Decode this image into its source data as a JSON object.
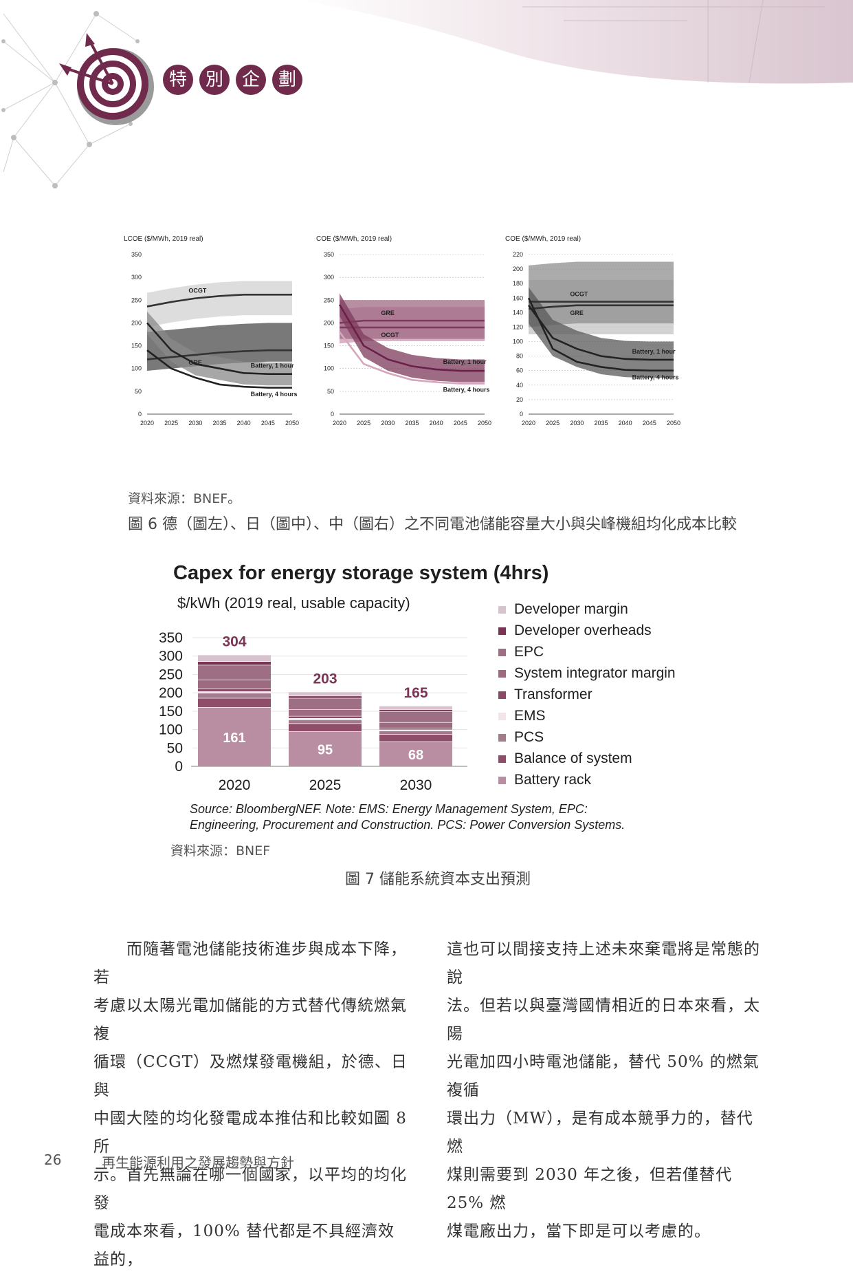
{
  "header": {
    "section_chars": [
      "特",
      "別",
      "企",
      "劃"
    ]
  },
  "figure6": {
    "source": "資料來源：BNEF。",
    "caption": "圖 6  德（圖左）、日（圖中）、中（圖右）之不同電池儲能容量大小與尖峰機組均化成本比較"
  },
  "chart_data": [
    {
      "type": "line",
      "title": "",
      "ylabel": "LCOE ($/MWh, 2019 real)",
      "ylim": [
        0,
        350
      ],
      "y_ticks": [
        "0",
        "50",
        "100",
        "150",
        "200",
        "250",
        "300",
        "350"
      ],
      "x_ticks": [
        "2020",
        "2025",
        "2030",
        "2035",
        "2040",
        "2045",
        "2050"
      ],
      "x": [
        2020,
        2025,
        2030,
        2035,
        2040,
        2045,
        2050
      ],
      "series": [
        {
          "name": "OCGT",
          "values": [
            236,
            246,
            254,
            259,
            262,
            262,
            262
          ]
        },
        {
          "name": "GRE",
          "values": [
            120,
            125,
            130,
            135,
            138,
            140,
            140
          ]
        },
        {
          "name": "Battery, 1 hour",
          "values": [
            200,
            140,
            110,
            100,
            90,
            88,
            88
          ]
        },
        {
          "name": "Battery, 4 hours",
          "values": [
            140,
            100,
            80,
            65,
            60,
            58,
            58
          ]
        }
      ]
    },
    {
      "type": "line",
      "title": "",
      "ylabel": "COE ($/MWh, 2019 real)",
      "ylim": [
        0,
        350
      ],
      "y_ticks": [
        "0",
        "50",
        "100",
        "150",
        "200",
        "250",
        "300",
        "350"
      ],
      "x_ticks": [
        "2020",
        "2025",
        "2030",
        "2035",
        "2040",
        "2045",
        "2050"
      ],
      "x": [
        2020,
        2025,
        2030,
        2035,
        2040,
        2045,
        2050
      ],
      "series": [
        {
          "name": "GRE",
          "values": [
            200,
            205,
            205,
            205,
            205,
            205,
            205
          ]
        },
        {
          "name": "OCGT",
          "values": [
            190,
            190,
            190,
            190,
            190,
            190,
            190
          ]
        },
        {
          "name": "Battery, 1 hour",
          "values": [
            240,
            150,
            120,
            105,
            98,
            95,
            95
          ]
        },
        {
          "name": "Battery, 4 hours",
          "values": [
            180,
            110,
            90,
            75,
            70,
            67,
            67
          ]
        }
      ]
    },
    {
      "type": "line",
      "title": "",
      "ylabel": "COE ($/MWh, 2019 real)",
      "ylim": [
        0,
        220
      ],
      "y_ticks": [
        "0",
        "20",
        "40",
        "60",
        "80",
        "100",
        "120",
        "140",
        "160",
        "180",
        "200",
        "220"
      ],
      "x_ticks": [
        "2020",
        "2025",
        "2030",
        "2035",
        "2040",
        "2045",
        "2050"
      ],
      "x": [
        2020,
        2025,
        2030,
        2035,
        2040,
        2045,
        2050
      ],
      "series": [
        {
          "name": "OCGT",
          "values": [
            155,
            155,
            155,
            155,
            155,
            155,
            155
          ]
        },
        {
          "name": "GRE",
          "values": [
            145,
            148,
            150,
            150,
            150,
            150,
            150
          ]
        },
        {
          "name": "Battery, 1 hour",
          "values": [
            150,
            105,
            90,
            80,
            76,
            75,
            75
          ]
        },
        {
          "name": "Battery, 4 hours",
          "values": [
            160,
            90,
            72,
            65,
            61,
            60,
            60
          ]
        }
      ]
    },
    {
      "type": "bar",
      "title": "Capex for energy storage system (4hrs)",
      "subtitle": "$/kWh (2019 real, usable capacity)",
      "categories": [
        "2020",
        "2025",
        "2030"
      ],
      "totals": [
        304,
        203,
        165
      ],
      "battery_rack_labels": [
        "161",
        "95",
        "68"
      ],
      "ylim": [
        0,
        350
      ],
      "y_ticks": [
        "350",
        "300",
        "250",
        "200",
        "150",
        "100",
        "50",
        "0"
      ],
      "series": [
        {
          "name": "Battery rack",
          "values": [
            161,
            95,
            68
          ],
          "color": "#b98ea2"
        },
        {
          "name": "Balance of system",
          "values": [
            25,
            22,
            20
          ],
          "color": "#8e4d68"
        },
        {
          "name": "PCS",
          "values": [
            14,
            10,
            9
          ],
          "color": "#a47a8d"
        },
        {
          "name": "EMS",
          "values": [
            4,
            4,
            3
          ],
          "color": "#f1e4ea"
        },
        {
          "name": "Transformer",
          "values": [
            8,
            6,
            5
          ],
          "color": "#8a4a65"
        },
        {
          "name": "System integrator margin",
          "values": [
            24,
            18,
            15
          ],
          "color": "#9d6a80"
        },
        {
          "name": "EPC",
          "values": [
            40,
            31,
            30
          ],
          "color": "#9e6f84"
        },
        {
          "name": "Developer overheads",
          "values": [
            10,
            6,
            5
          ],
          "color": "#7a3556"
        },
        {
          "name": "Developer margin",
          "values": [
            18,
            11,
            10
          ],
          "color": "#d7c3cd"
        }
      ],
      "legend_order": [
        "Developer margin",
        "Developer overheads",
        "EPC",
        "System integrator margin",
        "Transformer",
        "EMS",
        "PCS",
        "Balance of system",
        "Battery rack"
      ],
      "note": "Source: BloombergNEF. Note: EMS: Energy Management System, EPC: Engineering, Procurement and Construction. PCS: Power Conversion Systems."
    }
  ],
  "figure7": {
    "source": "資料來源：BNEF",
    "caption": "圖 7  儲能系統資本支出預測",
    "note_line1": "Source: BloombergNEF. Note: EMS: Energy Management System, EPC:",
    "note_line2": "Engineering, Procurement and Construction. PCS: Power Conversion Systems."
  },
  "body": {
    "left_column": [
      "　　而隨著電池儲能技術進步與成本下降，若",
      "考慮以太陽光電加儲能的方式替代傳統燃氣複",
      "循環（CCGT）及燃煤發電機組，於德、日與",
      "中國大陸的均化發電成本推估和比較如圖 8 所",
      "示。首先無論在哪一個國家，以平均的均化發",
      "電成本來看，100% 替代都是不具經濟效益的，"
    ],
    "right_column": [
      "這也可以間接支持上述未來棄電將是常態的說",
      "法。但若以與臺灣國情相近的日本來看，太陽",
      "光電加四小時電池儲能，替代 50% 的燃氣複循",
      "環出力（MW），是有成本競爭力的，替代燃",
      "煤則需要到 2030 年之後，但若僅替代 25% 燃",
      "煤電廠出力，當下即是可以考慮的。"
    ]
  },
  "footer": {
    "page_number": "26",
    "journal_title": "再生能源利用之發展趨勢與方針"
  }
}
